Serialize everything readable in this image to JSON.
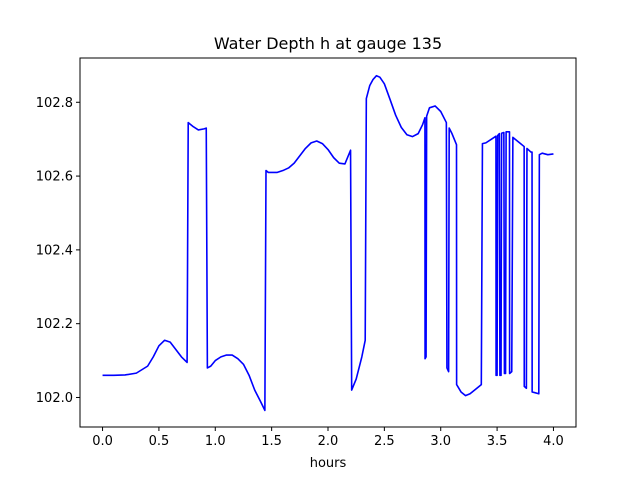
{
  "chart_data": {
    "type": "line",
    "title": "Water Depth h at gauge 135",
    "xlabel": "hours",
    "ylabel": "",
    "xlim": [
      -0.2,
      4.2
    ],
    "ylim": [
      101.92,
      102.92
    ],
    "xticks": [
      0.0,
      0.5,
      1.0,
      1.5,
      2.0,
      2.5,
      3.0,
      3.5,
      4.0
    ],
    "xtick_labels": [
      "0.0",
      "0.5",
      "1.0",
      "1.5",
      "2.0",
      "2.5",
      "3.0",
      "3.5",
      "4.0"
    ],
    "yticks": [
      102.0,
      102.2,
      102.4,
      102.6,
      102.8
    ],
    "ytick_labels": [
      "102.0",
      "102.2",
      "102.4",
      "102.6",
      "102.8"
    ],
    "grid": false,
    "series": [
      {
        "color": "#0000ff",
        "points": [
          [
            0.0,
            102.06
          ],
          [
            0.1,
            102.06
          ],
          [
            0.2,
            102.061
          ],
          [
            0.3,
            102.066
          ],
          [
            0.4,
            102.085
          ],
          [
            0.45,
            102.11
          ],
          [
            0.5,
            102.14
          ],
          [
            0.55,
            102.155
          ],
          [
            0.6,
            102.15
          ],
          [
            0.65,
            102.13
          ],
          [
            0.7,
            102.11
          ],
          [
            0.75,
            102.095
          ],
          [
            0.76,
            102.745
          ],
          [
            0.8,
            102.735
          ],
          [
            0.85,
            102.725
          ],
          [
            0.9,
            102.728
          ],
          [
            0.92,
            102.73
          ],
          [
            0.93,
            102.08
          ],
          [
            0.96,
            102.085
          ],
          [
            1.0,
            102.1
          ],
          [
            1.05,
            102.11
          ],
          [
            1.1,
            102.115
          ],
          [
            1.15,
            102.115
          ],
          [
            1.2,
            102.105
          ],
          [
            1.25,
            102.09
          ],
          [
            1.3,
            102.06
          ],
          [
            1.35,
            102.02
          ],
          [
            1.4,
            101.99
          ],
          [
            1.44,
            101.965
          ],
          [
            1.45,
            102.615
          ],
          [
            1.47,
            102.61
          ],
          [
            1.5,
            102.61
          ],
          [
            1.55,
            102.61
          ],
          [
            1.6,
            102.615
          ],
          [
            1.65,
            102.622
          ],
          [
            1.7,
            102.635
          ],
          [
            1.75,
            102.655
          ],
          [
            1.8,
            102.675
          ],
          [
            1.85,
            102.69
          ],
          [
            1.9,
            102.695
          ],
          [
            1.95,
            102.688
          ],
          [
            2.0,
            102.672
          ],
          [
            2.05,
            102.65
          ],
          [
            2.1,
            102.635
          ],
          [
            2.15,
            102.633
          ],
          [
            2.2,
            102.67
          ],
          [
            2.21,
            102.02
          ],
          [
            2.25,
            102.05
          ],
          [
            2.3,
            102.11
          ],
          [
            2.33,
            102.155
          ],
          [
            2.34,
            102.81
          ],
          [
            2.37,
            102.845
          ],
          [
            2.4,
            102.862
          ],
          [
            2.43,
            102.872
          ],
          [
            2.46,
            102.868
          ],
          [
            2.5,
            102.85
          ],
          [
            2.55,
            102.808
          ],
          [
            2.6,
            102.765
          ],
          [
            2.65,
            102.732
          ],
          [
            2.7,
            102.712
          ],
          [
            2.75,
            102.707
          ],
          [
            2.8,
            102.715
          ],
          [
            2.84,
            102.74
          ],
          [
            2.86,
            102.758
          ],
          [
            2.861,
            102.105
          ],
          [
            2.87,
            102.11
          ],
          [
            2.875,
            102.762
          ],
          [
            2.9,
            102.785
          ],
          [
            2.95,
            102.79
          ],
          [
            3.0,
            102.775
          ],
          [
            3.05,
            102.745
          ],
          [
            3.055,
            102.08
          ],
          [
            3.07,
            102.07
          ],
          [
            3.075,
            102.73
          ],
          [
            3.1,
            102.715
          ],
          [
            3.14,
            102.685
          ],
          [
            3.141,
            102.035
          ],
          [
            3.18,
            102.015
          ],
          [
            3.22,
            102.005
          ],
          [
            3.26,
            102.01
          ],
          [
            3.3,
            102.02
          ],
          [
            3.36,
            102.035
          ],
          [
            3.37,
            102.688
          ],
          [
            3.4,
            102.69
          ],
          [
            3.45,
            102.7
          ],
          [
            3.49,
            102.708
          ],
          [
            3.491,
            102.06
          ],
          [
            3.5,
            102.06
          ],
          [
            3.505,
            102.71
          ],
          [
            3.52,
            102.715
          ],
          [
            3.525,
            102.06
          ],
          [
            3.535,
            102.06
          ],
          [
            3.54,
            102.716
          ],
          [
            3.56,
            102.718
          ],
          [
            3.565,
            102.065
          ],
          [
            3.575,
            102.065
          ],
          [
            3.58,
            102.72
          ],
          [
            3.6,
            102.72
          ],
          [
            3.61,
            102.72
          ],
          [
            3.611,
            102.065
          ],
          [
            3.63,
            102.07
          ],
          [
            3.64,
            102.705
          ],
          [
            3.7,
            102.69
          ],
          [
            3.74,
            102.68
          ],
          [
            3.741,
            102.03
          ],
          [
            3.76,
            102.025
          ],
          [
            3.765,
            102.675
          ],
          [
            3.8,
            102.665
          ],
          [
            3.81,
            102.665
          ],
          [
            3.811,
            102.015
          ],
          [
            3.87,
            102.01
          ],
          [
            3.875,
            102.658
          ],
          [
            3.9,
            102.662
          ],
          [
            3.95,
            102.658
          ],
          [
            4.0,
            102.66
          ]
        ]
      }
    ]
  }
}
